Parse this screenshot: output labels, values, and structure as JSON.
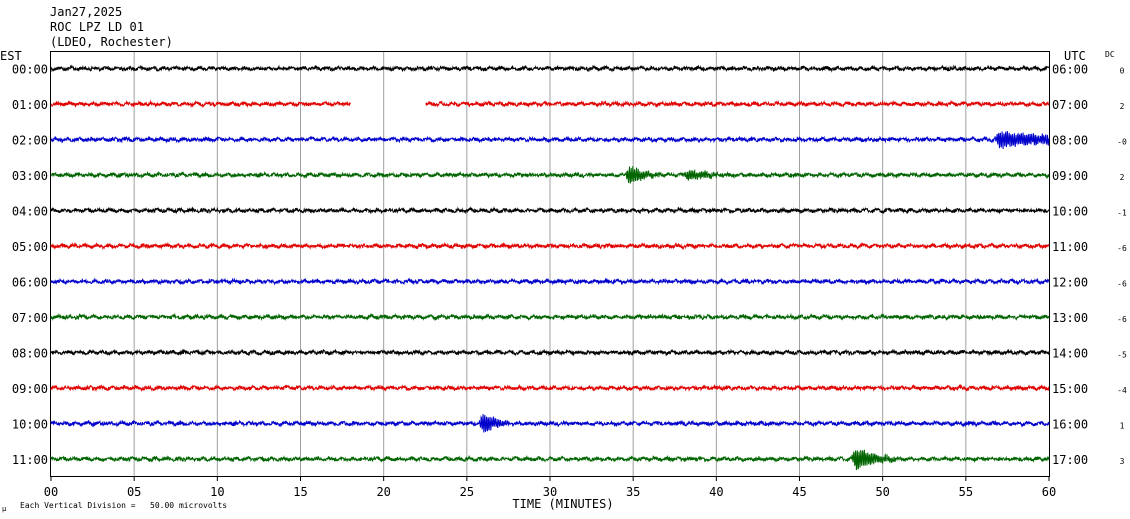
{
  "header": {
    "date": "Jan27,2025",
    "station": "ROC LPZ LD 01",
    "network": "(LDEO, Rochester)"
  },
  "chart_data": {
    "type": "line",
    "title": "Jan27,2025",
    "left_axis_label": "EST",
    "right_axis_label": "UTC",
    "dc_label": "DC",
    "xlabel": "TIME (MINUTES)",
    "xlim": [
      0,
      60
    ],
    "x_ticks": [
      "00",
      "05",
      "10",
      "15",
      "20",
      "25",
      "30",
      "35",
      "40",
      "45",
      "50",
      "55",
      "60"
    ],
    "grid": true,
    "footnote": "Each Vertical Division =   50.00 microvolts",
    "footnote_mark": "μ",
    "trace_colors": [
      "#000000",
      "#e00000",
      "#0000cc",
      "#006400"
    ],
    "rows": [
      {
        "est": "00:00",
        "utc": "06:00",
        "dc": "0",
        "events": []
      },
      {
        "est": "01:00",
        "utc": "07:00",
        "dc": "2",
        "events": [],
        "gap": [
          18.0,
          22.5
        ]
      },
      {
        "est": "02:00",
        "utc": "08:00",
        "dc": "-0",
        "events": [
          {
            "t": 57.0,
            "amp": 8,
            "dur": 4.0
          }
        ]
      },
      {
        "est": "03:00",
        "utc": "09:00",
        "dc": "2",
        "events": [
          {
            "t": 34.8,
            "amp": 9,
            "dur": 1.0
          },
          {
            "t": 38.3,
            "amp": 5,
            "dur": 1.5
          }
        ]
      },
      {
        "est": "04:00",
        "utc": "10:00",
        "dc": "-1",
        "events": []
      },
      {
        "est": "05:00",
        "utc": "11:00",
        "dc": "-6",
        "events": []
      },
      {
        "est": "06:00",
        "utc": "12:00",
        "dc": "-6",
        "events": []
      },
      {
        "est": "07:00",
        "utc": "13:00",
        "dc": "-6",
        "events": []
      },
      {
        "est": "08:00",
        "utc": "14:00",
        "dc": "-5",
        "events": []
      },
      {
        "est": "09:00",
        "utc": "15:00",
        "dc": "-4",
        "events": []
      },
      {
        "est": "10:00",
        "utc": "16:00",
        "dc": "1",
        "events": [
          {
            "t": 26.0,
            "amp": 10,
            "dur": 0.8
          }
        ]
      },
      {
        "est": "11:00",
        "utc": "17:00",
        "dc": "3",
        "events": [
          {
            "t": 48.4,
            "amp": 11,
            "dur": 1.2
          }
        ]
      }
    ]
  }
}
